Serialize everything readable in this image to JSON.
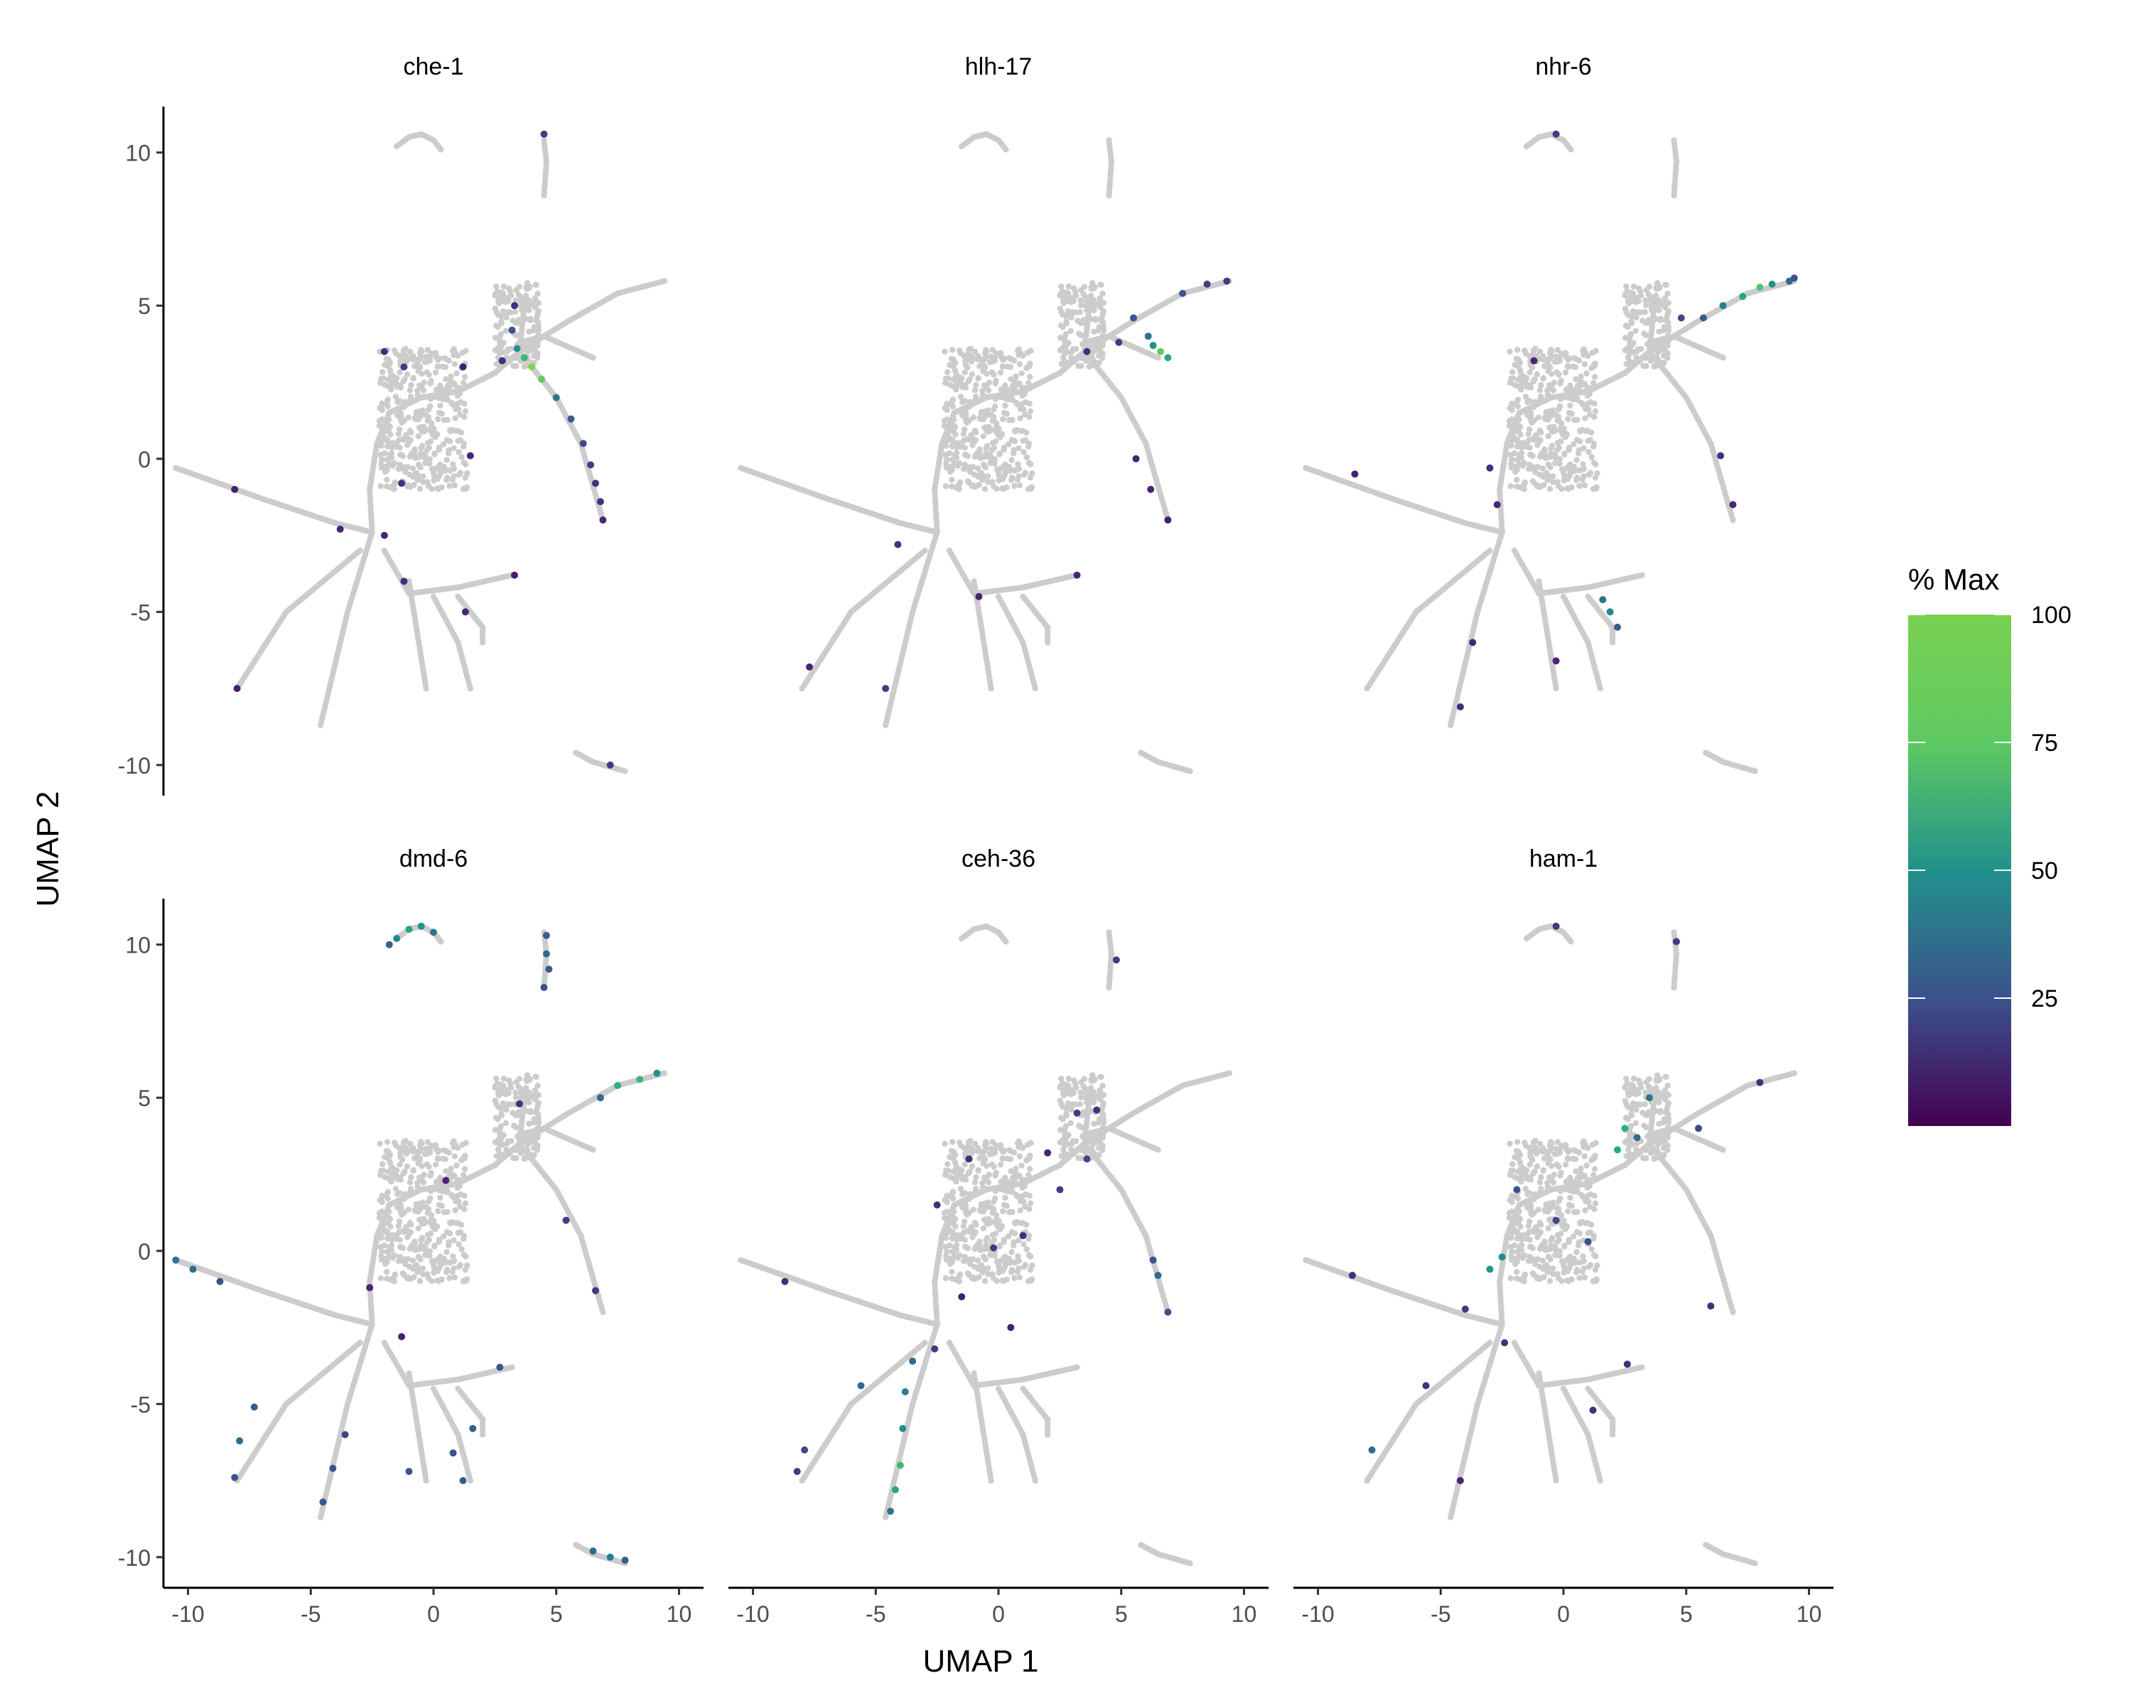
{
  "chart_data": {
    "type": "scatter",
    "xlabel": "UMAP 1",
    "ylabel": "UMAP 2",
    "xlim": [
      -11,
      11
    ],
    "ylim": [
      -11,
      11.5
    ],
    "x_ticks": [
      -10,
      -5,
      0,
      5,
      10
    ],
    "y_ticks": [
      -10,
      -5,
      0,
      5,
      10
    ],
    "background_color": "#cccccc",
    "legend": {
      "title": "% Max",
      "position": "right",
      "ticks": [
        25,
        50,
        75,
        100
      ],
      "colormap": "viridis",
      "range": [
        0,
        100
      ]
    },
    "panels": [
      {
        "title": "che-1",
        "points": [
          [
            4.0,
            3.0,
            95
          ],
          [
            4.4,
            2.6,
            90
          ],
          [
            3.7,
            3.3,
            80
          ],
          [
            3.4,
            3.6,
            60
          ],
          [
            5.0,
            2.0,
            45
          ],
          [
            5.6,
            1.3,
            35
          ],
          [
            6.1,
            0.5,
            25
          ],
          [
            6.4,
            -0.2,
            20
          ],
          [
            6.6,
            -0.8,
            15
          ],
          [
            6.8,
            -1.4,
            15
          ],
          [
            6.9,
            -2.0,
            12
          ],
          [
            3.2,
            4.2,
            30
          ],
          [
            3.3,
            5.0,
            15
          ],
          [
            2.8,
            3.2,
            15
          ],
          [
            1.2,
            3.0,
            10
          ],
          [
            -1.2,
            3.0,
            20
          ],
          [
            -1.3,
            -0.8,
            15
          ],
          [
            -2.0,
            -2.5,
            12
          ],
          [
            -3.8,
            -2.3,
            12
          ],
          [
            -8.1,
            -1.0,
            10
          ],
          [
            -8.0,
            -7.5,
            10
          ],
          [
            -1.2,
            -4.0,
            15
          ],
          [
            3.3,
            -3.8,
            10
          ],
          [
            1.3,
            -5.0,
            12
          ],
          [
            4.5,
            10.6,
            20
          ],
          [
            7.2,
            -10.0,
            20
          ],
          [
            1.5,
            0.1,
            12
          ],
          [
            -2.0,
            3.5,
            15
          ]
        ]
      },
      {
        "title": "hlh-17",
        "points": [
          [
            6.1,
            4.0,
            45
          ],
          [
            6.3,
            3.7,
            60
          ],
          [
            6.6,
            3.5,
            90
          ],
          [
            6.9,
            3.3,
            70
          ],
          [
            5.5,
            4.6,
            30
          ],
          [
            7.5,
            5.4,
            30
          ],
          [
            8.5,
            5.7,
            20
          ],
          [
            9.3,
            5.8,
            20
          ],
          [
            4.9,
            3.8,
            20
          ],
          [
            3.6,
            3.5,
            15
          ],
          [
            5.6,
            0.0,
            12
          ],
          [
            6.2,
            -1.0,
            12
          ],
          [
            3.2,
            -3.8,
            12
          ],
          [
            -0.8,
            -4.5,
            12
          ],
          [
            -4.1,
            -2.8,
            15
          ],
          [
            -4.6,
            -7.5,
            20
          ],
          [
            -7.7,
            -6.8,
            12
          ],
          [
            6.9,
            -2.0,
            10
          ]
        ]
      },
      {
        "title": "nhr-6",
        "points": [
          [
            5.7,
            4.6,
            35
          ],
          [
            6.5,
            5.0,
            50
          ],
          [
            7.3,
            5.3,
            70
          ],
          [
            8.0,
            5.6,
            85
          ],
          [
            8.5,
            5.7,
            60
          ],
          [
            9.2,
            5.8,
            40
          ],
          [
            9.4,
            5.9,
            30
          ],
          [
            4.8,
            4.6,
            25
          ],
          [
            6.4,
            0.1,
            15
          ],
          [
            6.9,
            -1.5,
            12
          ],
          [
            1.6,
            -4.6,
            45
          ],
          [
            1.9,
            -5.0,
            55
          ],
          [
            2.2,
            -5.5,
            35
          ],
          [
            -0.3,
            10.6,
            20
          ],
          [
            -0.3,
            -6.6,
            12
          ],
          [
            -3.0,
            -0.3,
            15
          ],
          [
            -2.7,
            -1.5,
            12
          ],
          [
            -1.2,
            3.2,
            12
          ],
          [
            -4.2,
            -8.1,
            15
          ],
          [
            -3.7,
            -6.0,
            12
          ],
          [
            -8.5,
            -0.5,
            10
          ]
        ]
      },
      {
        "title": "dmd-6",
        "points": [
          [
            -1.5,
            10.2,
            55
          ],
          [
            -1.0,
            10.5,
            70
          ],
          [
            -0.5,
            10.6,
            60
          ],
          [
            0.0,
            10.4,
            45
          ],
          [
            -1.8,
            10.0,
            35
          ],
          [
            4.6,
            10.3,
            35
          ],
          [
            4.6,
            9.7,
            40
          ],
          [
            4.7,
            9.2,
            35
          ],
          [
            4.5,
            8.6,
            30
          ],
          [
            7.5,
            5.4,
            75
          ],
          [
            8.4,
            5.6,
            80
          ],
          [
            9.1,
            5.8,
            60
          ],
          [
            6.8,
            5.0,
            40
          ],
          [
            7.2,
            -10.0,
            50
          ],
          [
            6.5,
            -9.8,
            40
          ],
          [
            7.8,
            -10.1,
            35
          ],
          [
            -10.5,
            -0.3,
            45
          ],
          [
            -9.8,
            -0.6,
            40
          ],
          [
            -8.7,
            -1.0,
            30
          ],
          [
            -7.9,
            -6.2,
            40
          ],
          [
            -7.3,
            -5.1,
            35
          ],
          [
            -8.1,
            -7.4,
            30
          ],
          [
            -4.5,
            -8.2,
            35
          ],
          [
            -4.1,
            -7.1,
            30
          ],
          [
            -3.6,
            -6.0,
            25
          ],
          [
            1.2,
            -7.5,
            35
          ],
          [
            0.8,
            -6.6,
            30
          ],
          [
            -1.0,
            -7.2,
            30
          ],
          [
            1.6,
            -5.8,
            35
          ],
          [
            2.7,
            -3.8,
            30
          ],
          [
            6.6,
            -1.3,
            20
          ],
          [
            5.4,
            1.0,
            20
          ],
          [
            3.5,
            4.8,
            15
          ],
          [
            0.5,
            2.3,
            12
          ],
          [
            -2.6,
            -1.2,
            12
          ],
          [
            -1.3,
            -2.8,
            10
          ]
        ]
      },
      {
        "title": "ceh-36",
        "points": [
          [
            -4.0,
            -7.0,
            80
          ],
          [
            -4.2,
            -7.8,
            70
          ],
          [
            -3.9,
            -5.8,
            60
          ],
          [
            -3.8,
            -4.6,
            50
          ],
          [
            -4.4,
            -8.5,
            45
          ],
          [
            -3.5,
            -3.6,
            40
          ],
          [
            -5.6,
            -4.4,
            40
          ],
          [
            6.5,
            -0.8,
            40
          ],
          [
            6.3,
            -0.3,
            30
          ],
          [
            6.9,
            -2.0,
            30
          ],
          [
            3.6,
            3.0,
            25
          ],
          [
            2.5,
            2.0,
            20
          ],
          [
            1.0,
            0.5,
            15
          ],
          [
            -0.2,
            0.1,
            20
          ],
          [
            -1.2,
            3.0,
            15
          ],
          [
            -2.5,
            1.5,
            15
          ],
          [
            -1.5,
            -1.5,
            10
          ],
          [
            0.5,
            -2.5,
            10
          ],
          [
            -2.6,
            -3.2,
            20
          ],
          [
            4.8,
            9.5,
            20
          ],
          [
            -7.9,
            -6.5,
            25
          ],
          [
            -8.2,
            -7.2,
            20
          ],
          [
            -8.7,
            -1.0,
            15
          ],
          [
            3.2,
            4.5,
            20
          ],
          [
            4.0,
            4.6,
            15
          ],
          [
            2.0,
            3.2,
            12
          ]
        ]
      },
      {
        "title": "ham-1",
        "points": [
          [
            2.5,
            4.0,
            75
          ],
          [
            2.2,
            3.3,
            70
          ],
          [
            -3.0,
            -0.6,
            60
          ],
          [
            -2.5,
            -0.2,
            55
          ],
          [
            3.5,
            5.0,
            45
          ],
          [
            3.0,
            3.7,
            40
          ],
          [
            -1.9,
            2.0,
            30
          ],
          [
            -0.3,
            1.0,
            25
          ],
          [
            1.0,
            0.3,
            30
          ],
          [
            5.5,
            4.0,
            25
          ],
          [
            -4.0,
            -1.9,
            20
          ],
          [
            -2.4,
            -3.0,
            15
          ],
          [
            -7.8,
            -6.5,
            40
          ],
          [
            -4.2,
            -7.5,
            12
          ],
          [
            -0.3,
            10.6,
            20
          ],
          [
            4.6,
            10.1,
            20
          ],
          [
            -8.6,
            -0.8,
            15
          ],
          [
            6.0,
            -1.8,
            15
          ],
          [
            1.2,
            -5.2,
            15
          ],
          [
            -5.6,
            -4.4,
            15
          ],
          [
            8.0,
            5.5,
            15
          ],
          [
            2.6,
            -3.7,
            15
          ]
        ]
      }
    ]
  }
}
